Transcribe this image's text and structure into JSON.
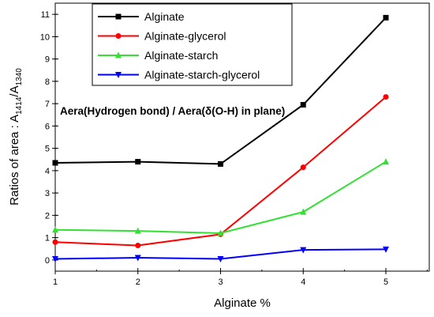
{
  "chart_data": {
    "type": "line",
    "x": [
      1,
      2,
      3,
      4,
      5
    ],
    "xlabel": "Alginate %",
    "ylabel": {
      "prefix": "Ratios of area : A",
      "sub1": "1414",
      "mid": "/A",
      "sub2": "1340"
    },
    "annotation": "Aera(Hydrogen bond) / Aera(δ(O-H) in plane)",
    "xlim": [
      1,
      5
    ],
    "ylim": [
      -0.5,
      11.5
    ],
    "xticks": [
      "1",
      "2",
      "3",
      "4",
      "5"
    ],
    "yticks": [
      "0",
      "1",
      "2",
      "3",
      "4",
      "5",
      "6",
      "7",
      "8",
      "9",
      "10",
      "11"
    ],
    "grid": false,
    "legend_position": "top",
    "series": [
      {
        "name": "Alginate",
        "color": "#000000",
        "marker": "square",
        "values": [
          4.35,
          4.4,
          4.3,
          6.95,
          10.85
        ]
      },
      {
        "name": "Alginate-glycerol",
        "color": "#ff0000",
        "marker": "circle",
        "values": [
          0.8,
          0.65,
          1.15,
          4.15,
          7.3
        ]
      },
      {
        "name": "Alginate-starch",
        "color": "#33e033",
        "marker": "triangle-up",
        "values": [
          1.35,
          1.3,
          1.2,
          2.15,
          4.4
        ]
      },
      {
        "name": "Alginate-starch-glycerol",
        "color": "#0000ff",
        "marker": "triangle-down",
        "values": [
          0.05,
          0.1,
          0.05,
          0.45,
          0.48
        ]
      }
    ]
  }
}
